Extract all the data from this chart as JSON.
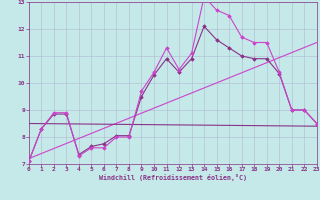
{
  "xlabel": "Windchill (Refroidissement éolien,°C)",
  "xlim": [
    0,
    23
  ],
  "ylim": [
    7,
    13
  ],
  "yticks": [
    7,
    8,
    9,
    10,
    11,
    12,
    13
  ],
  "xticks": [
    0,
    1,
    2,
    3,
    4,
    5,
    6,
    7,
    8,
    9,
    10,
    11,
    12,
    13,
    14,
    15,
    16,
    17,
    18,
    19,
    20,
    21,
    22,
    23
  ],
  "background_color": "#c5e8e8",
  "grid_color": "#b0b8d0",
  "line_color1": "#cc44cc",
  "line_color2": "#883388",
  "line1_y": [
    7.1,
    8.3,
    8.9,
    8.9,
    7.3,
    7.6,
    7.6,
    8.0,
    8.0,
    9.7,
    10.4,
    11.3,
    10.5,
    11.1,
    13.2,
    12.7,
    12.5,
    11.7,
    11.5,
    11.5,
    10.4,
    9.0,
    9.0,
    8.5
  ],
  "line2_y": [
    7.1,
    8.3,
    8.85,
    8.85,
    7.35,
    7.65,
    7.75,
    8.05,
    8.05,
    9.5,
    10.3,
    10.9,
    10.4,
    10.9,
    12.1,
    11.6,
    11.3,
    11.0,
    10.9,
    10.9,
    10.35,
    9.0,
    9.0,
    8.5
  ],
  "trend1_x": [
    0,
    23
  ],
  "trend1_y": [
    7.2,
    11.5
  ],
  "trend2_x": [
    0,
    23
  ],
  "trend2_y": [
    8.5,
    8.4
  ]
}
